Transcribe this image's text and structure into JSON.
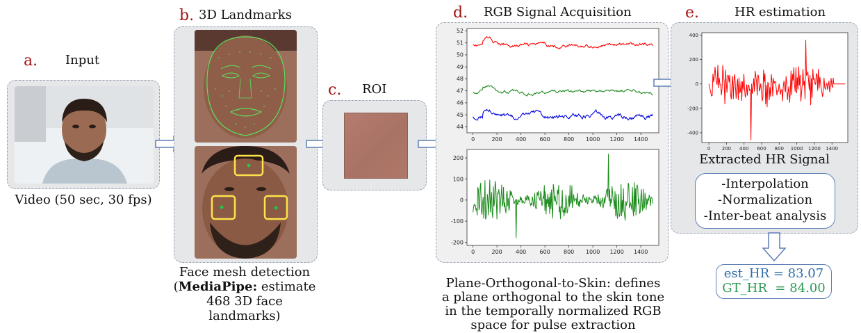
{
  "colors": {
    "letter": "#a31515",
    "red": "#ff0000",
    "green": "#1a8a1a",
    "blue": "#0000e0",
    "est": "#2e6ca8",
    "gt": "#2f9a55",
    "arrow": "#5d7fb5"
  },
  "input": {
    "letter": "a.",
    "title": "Input",
    "caption": "Video (50 sec, 30 fps)"
  },
  "landmarks": {
    "letter": "b.",
    "title": "3D Landmarks",
    "caption_line1": "Face mesh detection",
    "caption_bold": "MediaPipe:",
    "caption_rest": " estimate 468 3D face",
    "caption_line3": "landmarks)"
  },
  "roi": {
    "letter": "c.",
    "title": "ROI"
  },
  "rgb": {
    "letter": "d.",
    "title": "RGB Signal Acquisition",
    "caption": [
      "Plane-Orthogonal-to-Skin: defines",
      "a plane orthogonal to the skin tone",
      "in the temporally normalized RGB",
      "space for pulse extraction"
    ]
  },
  "hr": {
    "letter": "e.",
    "title": "HR estimation",
    "signal_label": "Extracted HR Signal",
    "steps": [
      "-Interpolation",
      "-Normalization",
      "-Inter-beat analysis"
    ],
    "est_hr": "est_HR = 83.07",
    "gt_hr": "GT_HR  = 84.00"
  },
  "chart_data": [
    {
      "type": "line",
      "name_hint": "rgb-traces",
      "x_ticks": [
        0,
        200,
        400,
        600,
        800,
        1000,
        1200,
        1400
      ],
      "xlim": [
        -50,
        1550
      ],
      "y_ticks": [
        44,
        45,
        46,
        47,
        48,
        49,
        50,
        51,
        52
      ],
      "ylim": [
        43.5,
        52.2
      ],
      "series": [
        {
          "color": "red",
          "base": 50.8,
          "amp": 0.25,
          "start": 51.0
        },
        {
          "color": "green",
          "base": 46.9,
          "amp": 0.22,
          "start": 47.0
        },
        {
          "color": "blue",
          "base": 44.9,
          "amp": 0.35,
          "start": 45.0
        }
      ]
    },
    {
      "type": "line",
      "name_hint": "pos-signal",
      "x_ticks": [
        0,
        200,
        400,
        600,
        800,
        1000,
        1200,
        1400
      ],
      "xlim": [
        -50,
        1550
      ],
      "y_ticks": [
        -200,
        -100,
        0,
        100,
        200
      ],
      "ylim": [
        -215,
        240
      ],
      "series": [
        {
          "color": "green",
          "amp": 100
        }
      ]
    },
    {
      "type": "line",
      "name_hint": "hr-signal",
      "x_ticks": [
        0,
        200,
        400,
        600,
        800,
        1000,
        1200,
        1400
      ],
      "xlim": [
        -80,
        1580
      ],
      "y_ticks": [
        -400,
        -200,
        0,
        200,
        400
      ],
      "ylim": [
        -480,
        420
      ],
      "series": [
        {
          "color": "red",
          "amp": 150
        }
      ]
    }
  ]
}
